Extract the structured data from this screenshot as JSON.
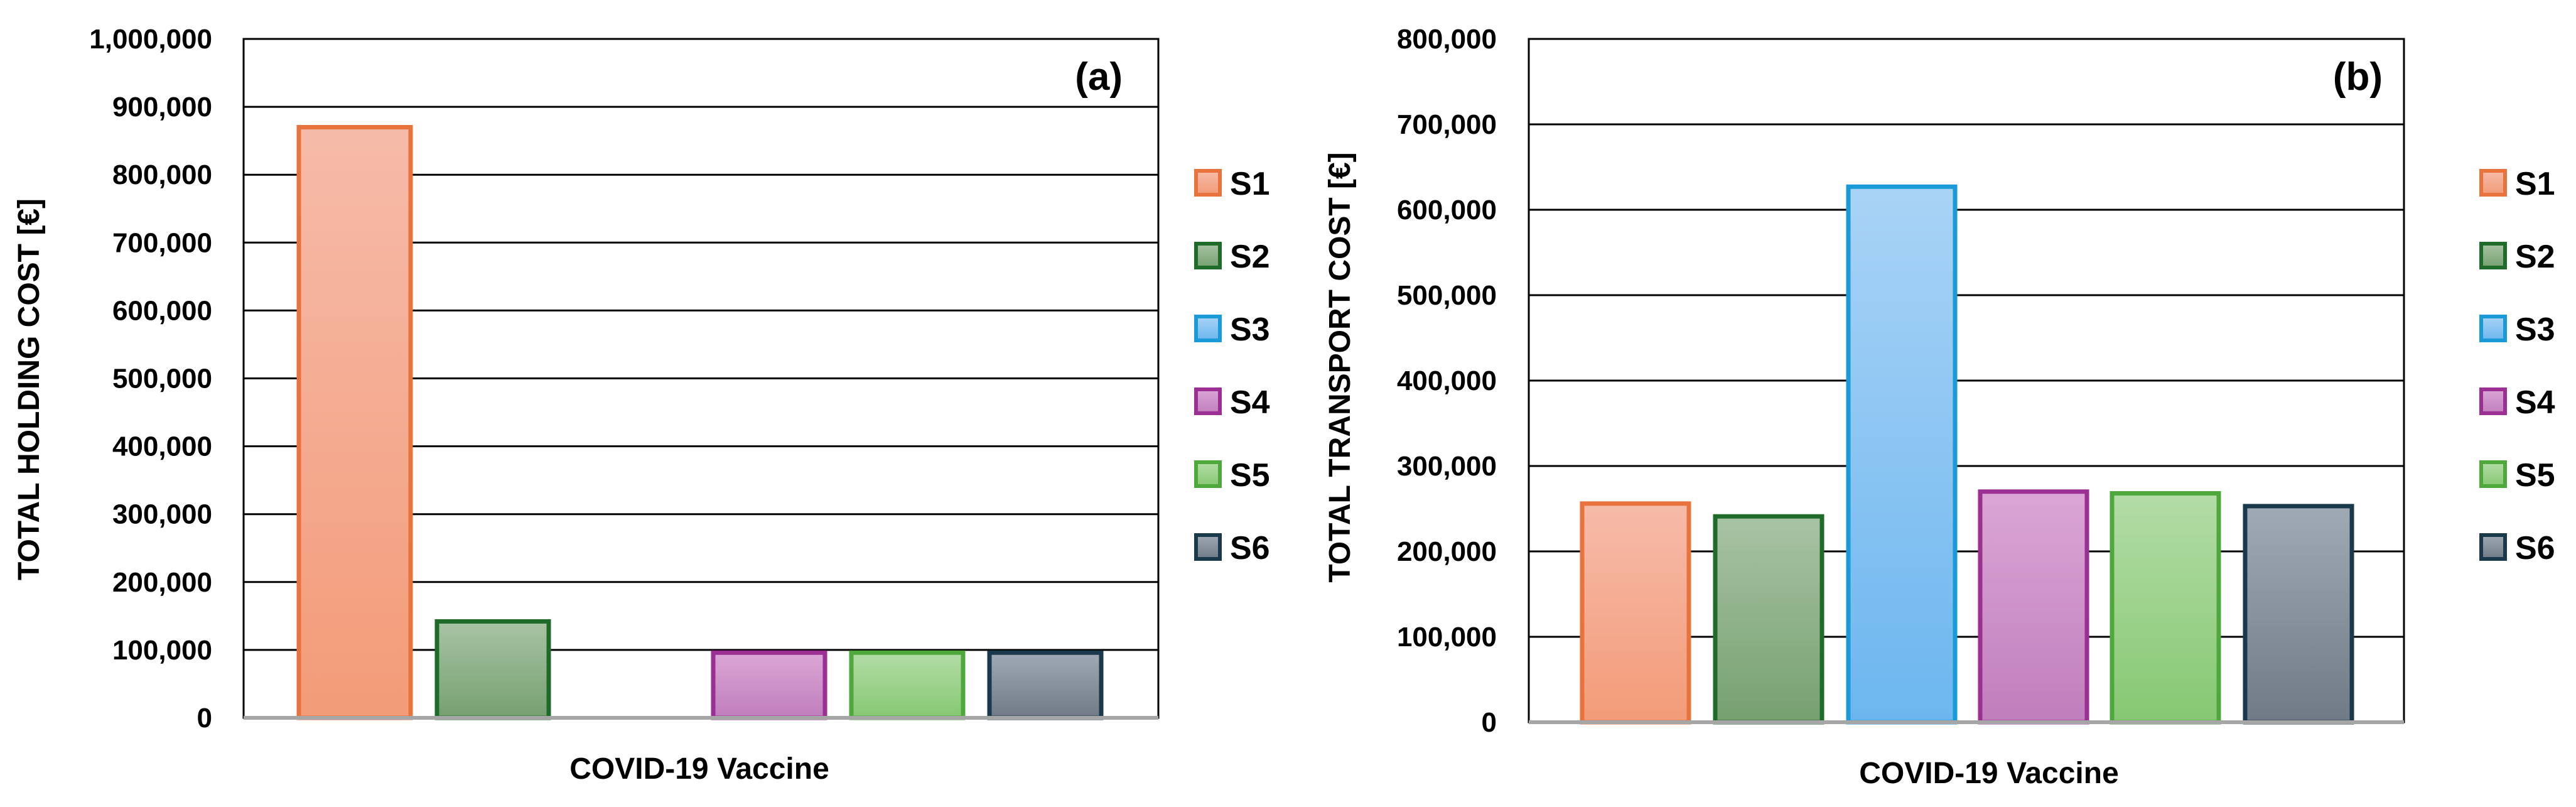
{
  "colors": {
    "S1": {
      "top": "#f6bba9",
      "bottom": "#f39b78",
      "stroke": "#e8733c"
    },
    "S2": {
      "top": "#a8c3a4",
      "bottom": "#76a070",
      "stroke": "#1e6b2a"
    },
    "S3": {
      "top": "#a9d3f6",
      "bottom": "#6cb6ef",
      "stroke": "#1a9ad6"
    },
    "S4": {
      "top": "#dba6d6",
      "bottom": "#c07ebc",
      "stroke": "#9b2f93"
    },
    "S5": {
      "top": "#b3dca6",
      "bottom": "#86c872",
      "stroke": "#4ea83c"
    },
    "S6": {
      "top": "#a0aab4",
      "bottom": "#6f7a86",
      "stroke": "#1a3a4c"
    }
  },
  "chart_data": [
    {
      "type": "bar",
      "panel_label": "(a)",
      "title": "",
      "xlabel": "COVID-19 Vaccine",
      "ylabel": "TOTAL HOLDING COST [€]",
      "ylim": [
        0,
        1000000
      ],
      "yticks": [
        0,
        100000,
        200000,
        300000,
        400000,
        500000,
        600000,
        700000,
        800000,
        900000,
        1000000
      ],
      "ytick_labels": [
        "0",
        "100,000",
        "200,000",
        "300,000",
        "400,000",
        "500,000",
        "600,000",
        "700,000",
        "800,000",
        "900,000",
        "1,000,000"
      ],
      "grid": true,
      "legend_position": "right",
      "categories": [
        "COVID-19 Vaccine"
      ],
      "series": [
        {
          "name": "S1",
          "values": [
            870000
          ]
        },
        {
          "name": "S2",
          "values": [
            142000
          ]
        },
        {
          "name": "S3",
          "values": [
            0
          ]
        },
        {
          "name": "S4",
          "values": [
            96000
          ]
        },
        {
          "name": "S5",
          "values": [
            96000
          ]
        },
        {
          "name": "S6",
          "values": [
            96000
          ]
        }
      ]
    },
    {
      "type": "bar",
      "panel_label": "(b)",
      "title": "",
      "xlabel": "COVID-19 Vaccine",
      "ylabel": "TOTAL TRANSPORT COST [€]",
      "ylim": [
        0,
        800000
      ],
      "yticks": [
        0,
        100000,
        200000,
        300000,
        400000,
        500000,
        600000,
        700000,
        800000
      ],
      "ytick_labels": [
        "0",
        "100,000",
        "200,000",
        "300,000",
        "400,000",
        "500,000",
        "600,000",
        "700,000",
        "800,000"
      ],
      "grid": true,
      "legend_position": "right",
      "categories": [
        "COVID-19 Vaccine"
      ],
      "series": [
        {
          "name": "S1",
          "values": [
            256000
          ]
        },
        {
          "name": "S2",
          "values": [
            241000
          ]
        },
        {
          "name": "S3",
          "values": [
            627000
          ]
        },
        {
          "name": "S4",
          "values": [
            270000
          ]
        },
        {
          "name": "S5",
          "values": [
            268000
          ]
        },
        {
          "name": "S6",
          "values": [
            253000
          ]
        }
      ]
    }
  ]
}
